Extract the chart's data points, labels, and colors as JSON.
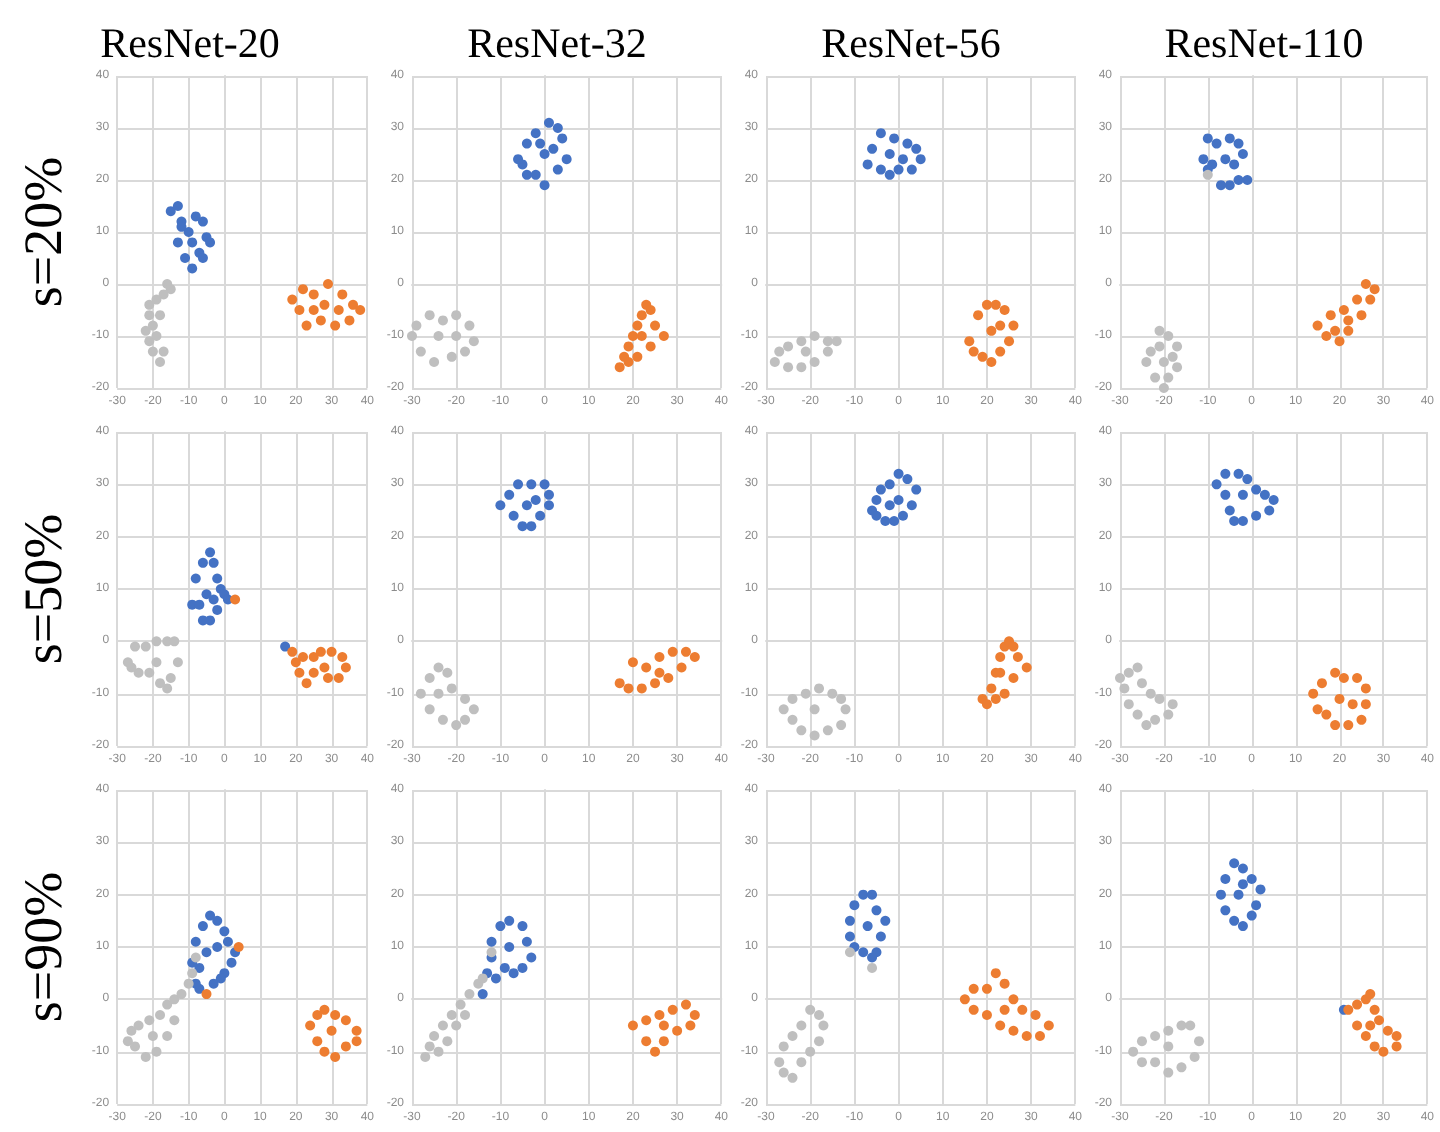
{
  "chart_data": [
    {
      "type": "scatter",
      "title": "ResNet-20",
      "ylabel": "s=20%",
      "xlim": [
        -30,
        40
      ],
      "xticks": [
        -30,
        -20,
        -10,
        0,
        10,
        20,
        30,
        40
      ],
      "ylim": [
        -20,
        40
      ],
      "yticks": [
        -20,
        -10,
        0,
        10,
        20,
        30,
        40
      ],
      "grid": true,
      "marker": "circle",
      "series": [
        {
          "color": "#4472c4",
          "x": [
            -15,
            -13,
            -12,
            -10,
            -8,
            -6,
            -5,
            -4,
            -7,
            -9,
            -11,
            -13,
            -9,
            -6,
            -12
          ],
          "values": [
            14,
            15,
            12,
            10,
            13,
            12,
            9,
            8,
            6,
            3,
            5,
            8,
            8,
            5,
            11
          ]
        },
        {
          "color": "#ed7d31",
          "x": [
            19,
            22,
            25,
            29,
            33,
            36,
            38,
            35,
            31,
            27,
            23,
            21,
            28,
            32,
            25
          ],
          "values": [
            -3,
            -1,
            -2,
            0,
            -2,
            -4,
            -5,
            -7,
            -8,
            -7,
            -8,
            -5,
            -4,
            -5,
            -5
          ]
        },
        {
          "color": "#bfbfbf",
          "x": [
            -16,
            -15,
            -17,
            -19,
            -21,
            -21,
            -22,
            -21,
            -20,
            -18,
            -17,
            -19,
            -20,
            -18
          ],
          "values": [
            0,
            -1,
            -2,
            -3,
            -4,
            -6,
            -9,
            -11,
            -13,
            -15,
            -13,
            -10,
            -8,
            -6
          ]
        }
      ]
    },
    {
      "type": "scatter",
      "title": "ResNet-32",
      "xlim": [
        -30,
        40
      ],
      "xticks": [
        -30,
        -20,
        -10,
        0,
        10,
        20,
        30,
        40
      ],
      "ylim": [
        -20,
        40
      ],
      "yticks": [
        -20,
        -10,
        0,
        10,
        20,
        30,
        40
      ],
      "grid": true,
      "marker": "circle",
      "series": [
        {
          "color": "#4472c4",
          "x": [
            -5,
            -6,
            -4,
            -2,
            1,
            3,
            4,
            5,
            3,
            0,
            -2,
            -4,
            0,
            2,
            -1
          ],
          "values": [
            23,
            24,
            27,
            29,
            31,
            30,
            28,
            24,
            22,
            19,
            21,
            21,
            25,
            26,
            27
          ]
        },
        {
          "color": "#ed7d31",
          "x": [
            17,
            18,
            19,
            20,
            21,
            22,
            23,
            24,
            25,
            27,
            24,
            21,
            19,
            22
          ],
          "values": [
            -16,
            -14,
            -12,
            -10,
            -8,
            -6,
            -4,
            -5,
            -8,
            -10,
            -12,
            -14,
            -15,
            -10
          ]
        },
        {
          "color": "#bfbfbf",
          "x": [
            -30,
            -29,
            -26,
            -23,
            -20,
            -17,
            -16,
            -18,
            -21,
            -25,
            -28,
            -24,
            -20
          ],
          "values": [
            -10,
            -8,
            -6,
            -7,
            -6,
            -8,
            -11,
            -13,
            -14,
            -15,
            -13,
            -10,
            -10
          ]
        }
      ]
    },
    {
      "type": "scatter",
      "title": "ResNet-56",
      "xlim": [
        -30,
        40
      ],
      "xticks": [
        -30,
        -20,
        -10,
        0,
        10,
        20,
        30,
        40
      ],
      "ylim": [
        -20,
        40
      ],
      "yticks": [
        -20,
        -10,
        0,
        10,
        20,
        30,
        40
      ],
      "grid": true,
      "marker": "circle",
      "series": [
        {
          "color": "#4472c4",
          "x": [
            -7,
            -6,
            -4,
            -1,
            2,
            4,
            5,
            3,
            0,
            -2,
            -4,
            -2,
            1
          ],
          "values": [
            23,
            26,
            29,
            28,
            27,
            26,
            24,
            22,
            22,
            21,
            22,
            25,
            24
          ]
        },
        {
          "color": "#ed7d31",
          "x": [
            16,
            18,
            20,
            22,
            24,
            26,
            25,
            23,
            21,
            19,
            17,
            21,
            23
          ],
          "values": [
            -11,
            -6,
            -4,
            -4,
            -5,
            -8,
            -11,
            -13,
            -15,
            -14,
            -13,
            -9,
            -8
          ]
        },
        {
          "color": "#bfbfbf",
          "x": [
            -28,
            -27,
            -25,
            -22,
            -19,
            -16,
            -14,
            -16,
            -19,
            -22,
            -25,
            -21
          ],
          "values": [
            -15,
            -13,
            -12,
            -11,
            -10,
            -11,
            -11,
            -13,
            -15,
            -16,
            -16,
            -13
          ]
        }
      ]
    },
    {
      "type": "scatter",
      "title": "ResNet-110",
      "xlim": [
        -30,
        40
      ],
      "xticks": [
        -30,
        -20,
        -10,
        0,
        10,
        20,
        30,
        40
      ],
      "ylim": [
        -20,
        40
      ],
      "yticks": [
        -20,
        -10,
        0,
        10,
        20,
        30,
        40
      ],
      "grid": true,
      "marker": "circle",
      "series": [
        {
          "color": "#4472c4",
          "x": [
            -11,
            -10,
            -8,
            -5,
            -3,
            -2,
            -1,
            -3,
            -5,
            -7,
            -9,
            -10,
            -6,
            -4
          ],
          "values": [
            24,
            28,
            27,
            28,
            27,
            25,
            20,
            20,
            19,
            19,
            23,
            22,
            24,
            23
          ]
        },
        {
          "color": "#ed7d31",
          "x": [
            15,
            17,
            20,
            22,
            25,
            27,
            28,
            26,
            24,
            21,
            18,
            22,
            19
          ],
          "values": [
            -8,
            -10,
            -11,
            -9,
            -6,
            -3,
            -1,
            0,
            -3,
            -5,
            -6,
            -7,
            -9
          ]
        },
        {
          "color": "#bfbfbf",
          "x": [
            -21,
            -19,
            -17,
            -18,
            -17,
            -19,
            -20,
            -22,
            -24,
            -23,
            -21,
            -20,
            -10
          ],
          "values": [
            -9,
            -10,
            -12,
            -14,
            -16,
            -18,
            -20,
            -18,
            -15,
            -13,
            -12,
            -15,
            21
          ]
        }
      ]
    },
    {
      "type": "scatter",
      "ylabel": "s=50%",
      "xlim": [
        -30,
        40
      ],
      "xticks": [
        -30,
        -20,
        -10,
        0,
        10,
        20,
        30,
        40
      ],
      "ylim": [
        -20,
        40
      ],
      "yticks": [
        -20,
        -10,
        0,
        10,
        20,
        30,
        40
      ],
      "grid": true,
      "marker": "circle",
      "series": [
        {
          "color": "#4472c4",
          "x": [
            -9,
            -7,
            -8,
            -6,
            -4,
            -3,
            -2,
            -1,
            0,
            1,
            -2,
            -4,
            -6,
            -5,
            -3,
            17
          ],
          "values": [
            7,
            7,
            12,
            15,
            17,
            15,
            12,
            10,
            9,
            8,
            6,
            4,
            4,
            9,
            8,
            -1
          ]
        },
        {
          "color": "#ed7d31",
          "x": [
            19,
            22,
            25,
            27,
            30,
            33,
            34,
            32,
            29,
            25,
            23,
            21,
            20,
            28,
            3
          ],
          "values": [
            -2,
            -3,
            -3,
            -2,
            -2,
            -3,
            -5,
            -7,
            -7,
            -6,
            -8,
            -6,
            -4,
            -5,
            8
          ]
        },
        {
          "color": "#bfbfbf",
          "x": [
            -27,
            -25,
            -22,
            -19,
            -16,
            -14,
            -13,
            -15,
            -16,
            -18,
            -21,
            -24,
            -26,
            -19
          ],
          "values": [
            -4,
            -1,
            -1,
            0,
            0,
            0,
            -4,
            -7,
            -9,
            -8,
            -6,
            -6,
            -5,
            -4
          ]
        }
      ]
    },
    {
      "type": "scatter",
      "xlim": [
        -30,
        40
      ],
      "xticks": [
        -30,
        -20,
        -10,
        0,
        10,
        20,
        30,
        40
      ],
      "ylim": [
        -20,
        40
      ],
      "yticks": [
        -20,
        -10,
        0,
        10,
        20,
        30,
        40
      ],
      "grid": true,
      "marker": "circle",
      "series": [
        {
          "color": "#4472c4",
          "x": [
            -10,
            -8,
            -6,
            -3,
            0,
            1,
            1,
            -1,
            -3,
            -5,
            -7,
            -4,
            -2
          ],
          "values": [
            26,
            28,
            30,
            30,
            30,
            28,
            26,
            24,
            22,
            22,
            24,
            26,
            27
          ]
        },
        {
          "color": "#ed7d31",
          "x": [
            17,
            19,
            22,
            25,
            28,
            31,
            34,
            32,
            29,
            26,
            23,
            20,
            26
          ],
          "values": [
            -8,
            -9,
            -9,
            -8,
            -7,
            -5,
            -3,
            -2,
            -2,
            -3,
            -5,
            -4,
            -6
          ]
        },
        {
          "color": "#bfbfbf",
          "x": [
            -28,
            -26,
            -24,
            -22,
            -21,
            -18,
            -16,
            -18,
            -20,
            -23,
            -26,
            -24
          ],
          "values": [
            -10,
            -7,
            -5,
            -6,
            -9,
            -11,
            -13,
            -15,
            -16,
            -15,
            -13,
            -10
          ]
        }
      ]
    },
    {
      "type": "scatter",
      "xlim": [
        -30,
        40
      ],
      "xticks": [
        -30,
        -20,
        -10,
        0,
        10,
        20,
        30,
        40
      ],
      "ylim": [
        -20,
        40
      ],
      "yticks": [
        -20,
        -10,
        0,
        10,
        20,
        30,
        40
      ],
      "grid": true,
      "marker": "circle",
      "series": [
        {
          "color": "#4472c4",
          "x": [
            -6,
            -5,
            -4,
            -2,
            0,
            2,
            4,
            3,
            1,
            -1,
            -3,
            -5,
            0,
            -2
          ],
          "values": [
            25,
            27,
            29,
            30,
            32,
            31,
            29,
            26,
            24,
            23,
            23,
            24,
            27,
            26
          ]
        },
        {
          "color": "#ed7d31",
          "x": [
            19,
            20,
            21,
            22,
            23,
            24,
            25,
            26,
            27,
            29,
            26,
            24,
            22,
            23
          ],
          "values": [
            -11,
            -12,
            -9,
            -6,
            -3,
            -1,
            0,
            -1,
            -3,
            -5,
            -7,
            -10,
            -11,
            -6
          ]
        },
        {
          "color": "#bfbfbf",
          "x": [
            -26,
            -24,
            -21,
            -18,
            -15,
            -13,
            -12,
            -13,
            -16,
            -19,
            -22,
            -24,
            -19
          ],
          "values": [
            -13,
            -11,
            -10,
            -9,
            -10,
            -11,
            -13,
            -16,
            -17,
            -18,
            -17,
            -15,
            -13
          ]
        }
      ]
    },
    {
      "type": "scatter",
      "xlim": [
        -30,
        40
      ],
      "xticks": [
        -30,
        -20,
        -10,
        0,
        10,
        20,
        30,
        40
      ],
      "ylim": [
        -20,
        40
      ],
      "yticks": [
        -20,
        -10,
        0,
        10,
        20,
        30,
        40
      ],
      "grid": true,
      "marker": "circle",
      "series": [
        {
          "color": "#4472c4",
          "x": [
            -8,
            -6,
            -3,
            -1,
            1,
            3,
            5,
            4,
            1,
            -2,
            -4,
            -5,
            -6,
            -2
          ],
          "values": [
            30,
            32,
            32,
            31,
            29,
            28,
            27,
            25,
            24,
            23,
            23,
            25,
            28,
            28
          ]
        },
        {
          "color": "#ed7d31",
          "x": [
            14,
            15,
            17,
            19,
            22,
            25,
            26,
            26,
            24,
            21,
            19,
            16,
            20,
            23
          ],
          "values": [
            -10,
            -13,
            -14,
            -16,
            -16,
            -15,
            -12,
            -9,
            -7,
            -7,
            -6,
            -8,
            -11,
            -12
          ]
        },
        {
          "color": "#bfbfbf",
          "x": [
            -30,
            -28,
            -26,
            -25,
            -23,
            -21,
            -18,
            -19,
            -22,
            -24,
            -26,
            -28,
            -29
          ],
          "values": [
            -7,
            -6,
            -5,
            -8,
            -10,
            -11,
            -12,
            -14,
            -15,
            -16,
            -14,
            -12,
            -9
          ]
        }
      ]
    },
    {
      "type": "scatter",
      "ylabel": "s=90%",
      "xlim": [
        -30,
        40
      ],
      "xticks": [
        -30,
        -20,
        -10,
        0,
        10,
        20,
        30,
        40
      ],
      "ylim": [
        -20,
        40
      ],
      "yticks": [
        -20,
        -10,
        0,
        10,
        20,
        30,
        40
      ],
      "grid": true,
      "marker": "circle",
      "series": [
        {
          "color": "#4472c4",
          "x": [
            -7,
            -9,
            -8,
            -6,
            -4,
            -2,
            0,
            1,
            3,
            2,
            0,
            -1,
            -3,
            -7,
            -8,
            -5,
            -2
          ],
          "values": [
            6,
            7,
            11,
            14,
            16,
            15,
            13,
            11,
            9,
            7,
            5,
            4,
            3,
            2,
            3,
            9,
            10
          ]
        },
        {
          "color": "#ed7d31",
          "x": [
            24,
            26,
            28,
            31,
            34,
            37,
            37,
            34,
            31,
            28,
            26,
            30,
            4,
            -5
          ],
          "values": [
            -5,
            -3,
            -2,
            -3,
            -4,
            -6,
            -8,
            -9,
            -11,
            -10,
            -8,
            -6,
            10,
            1
          ]
        },
        {
          "color": "#bfbfbf",
          "x": [
            -27,
            -26,
            -24,
            -21,
            -18,
            -16,
            -14,
            -12,
            -10,
            -9,
            -14,
            -16,
            -19,
            -22,
            -25,
            -20,
            -8
          ],
          "values": [
            -8,
            -6,
            -5,
            -4,
            -3,
            -1,
            0,
            1,
            3,
            5,
            -4,
            -7,
            -10,
            -11,
            -9,
            -7,
            8
          ]
        }
      ]
    },
    {
      "type": "scatter",
      "xlim": [
        -30,
        40
      ],
      "xticks": [
        -30,
        -20,
        -10,
        0,
        10,
        20,
        30,
        40
      ],
      "ylim": [
        -20,
        40
      ],
      "yticks": [
        -20,
        -10,
        0,
        10,
        20,
        30,
        40
      ],
      "grid": true,
      "marker": "circle",
      "series": [
        {
          "color": "#4472c4",
          "x": [
            -14,
            -13,
            -12,
            -12,
            -10,
            -8,
            -5,
            -4,
            -3,
            -5,
            -7,
            -9,
            -11,
            -8
          ],
          "values": [
            1,
            5,
            8,
            11,
            14,
            15,
            14,
            11,
            8,
            6,
            5,
            6,
            4,
            10
          ]
        },
        {
          "color": "#ed7d31",
          "x": [
            20,
            23,
            26,
            29,
            32,
            34,
            33,
            30,
            27,
            25,
            23,
            27
          ],
          "values": [
            -5,
            -4,
            -3,
            -2,
            -1,
            -3,
            -5,
            -6,
            -8,
            -10,
            -8,
            -5
          ]
        },
        {
          "color": "#bfbfbf",
          "x": [
            -27,
            -26,
            -25,
            -23,
            -21,
            -19,
            -17,
            -15,
            -14,
            -20,
            -22,
            -24,
            -18,
            -12
          ],
          "values": [
            -11,
            -9,
            -7,
            -5,
            -3,
            -1,
            1,
            3,
            4,
            -5,
            -8,
            -10,
            -3,
            9
          ]
        }
      ]
    },
    {
      "type": "scatter",
      "xlim": [
        -30,
        40
      ],
      "xticks": [
        -30,
        -20,
        -10,
        0,
        10,
        20,
        30,
        40
      ],
      "ylim": [
        -20,
        40
      ],
      "yticks": [
        -20,
        -10,
        0,
        10,
        20,
        30,
        40
      ],
      "grid": true,
      "marker": "circle",
      "series": [
        {
          "color": "#4472c4",
          "x": [
            -11,
            -11,
            -10,
            -8,
            -6,
            -5,
            -3,
            -4,
            -5,
            -6,
            -8,
            -10,
            -7
          ],
          "values": [
            12,
            15,
            18,
            20,
            20,
            17,
            15,
            12,
            9,
            8,
            9,
            10,
            14
          ]
        },
        {
          "color": "#ed7d31",
          "x": [
            15,
            17,
            20,
            22,
            24,
            26,
            28,
            31,
            34,
            32,
            29,
            26,
            23,
            20,
            17,
            24
          ],
          "values": [
            0,
            2,
            2,
            5,
            3,
            0,
            -2,
            -3,
            -5,
            -7,
            -7,
            -6,
            -5,
            -3,
            -2,
            -2
          ]
        },
        {
          "color": "#bfbfbf",
          "x": [
            -27,
            -26,
            -24,
            -22,
            -20,
            -18,
            -17,
            -18,
            -20,
            -22,
            -24,
            -26,
            -11,
            -6
          ],
          "values": [
            -12,
            -14,
            -15,
            -12,
            -10,
            -8,
            -5,
            -3,
            -2,
            -5,
            -7,
            -9,
            9,
            6
          ]
        }
      ]
    },
    {
      "type": "scatter",
      "xlim": [
        -30,
        40
      ],
      "xticks": [
        -30,
        -20,
        -10,
        0,
        10,
        20,
        30,
        40
      ],
      "ylim": [
        -20,
        40
      ],
      "yticks": [
        -20,
        -10,
        0,
        10,
        20,
        30,
        40
      ],
      "grid": true,
      "marker": "circle",
      "series": [
        {
          "color": "#4472c4",
          "x": [
            -7,
            -6,
            -4,
            -2,
            0,
            2,
            1,
            0,
            -2,
            -4,
            -6,
            -3,
            -2,
            21
          ],
          "values": [
            20,
            23,
            26,
            25,
            23,
            21,
            18,
            16,
            14,
            15,
            17,
            20,
            22,
            -2
          ]
        },
        {
          "color": "#ed7d31",
          "x": [
            22,
            24,
            26,
            27,
            28,
            29,
            31,
            33,
            33,
            30,
            28,
            26,
            24,
            27
          ],
          "values": [
            -2,
            -1,
            0,
            1,
            -2,
            -4,
            -6,
            -7,
            -9,
            -10,
            -9,
            -7,
            -5,
            -5
          ]
        },
        {
          "color": "#bfbfbf",
          "x": [
            -27,
            -25,
            -22,
            -19,
            -16,
            -14,
            -12,
            -13,
            -16,
            -19,
            -22,
            -25,
            -19
          ],
          "values": [
            -10,
            -8,
            -7,
            -6,
            -5,
            -5,
            -8,
            -11,
            -13,
            -14,
            -12,
            -12,
            -9
          ]
        }
      ]
    }
  ]
}
